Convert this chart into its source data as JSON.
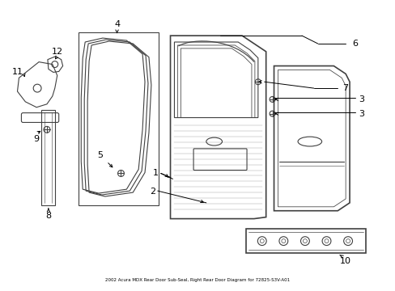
{
  "bg_color": "#ffffff",
  "line_color": "#404040",
  "fig_width": 4.89,
  "fig_height": 3.6,
  "dpi": 100,
  "title": "2002 Acura MDX Rear Door Sub-Seal, Right Rear Door Diagram for 72825-S3V-A01"
}
